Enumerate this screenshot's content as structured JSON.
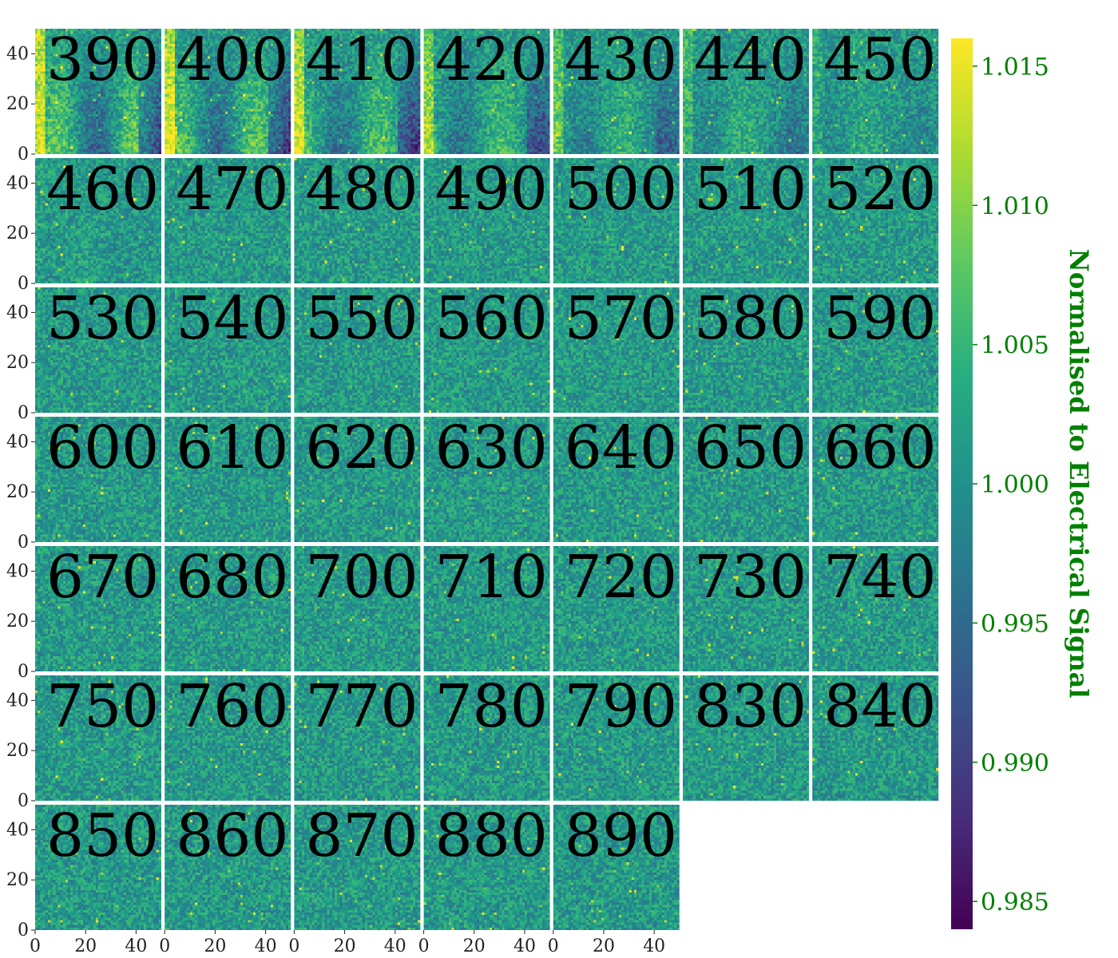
{
  "chart_data": {
    "type": "heatmap",
    "layout": {
      "rows": 7,
      "cols": 7
    },
    "panels": [
      {
        "label": "390"
      },
      {
        "label": "400"
      },
      {
        "label": "410"
      },
      {
        "label": "420"
      },
      {
        "label": "430"
      },
      {
        "label": "440"
      },
      {
        "label": "450"
      },
      {
        "label": "460"
      },
      {
        "label": "470"
      },
      {
        "label": "480"
      },
      {
        "label": "490"
      },
      {
        "label": "500"
      },
      {
        "label": "510"
      },
      {
        "label": "520"
      },
      {
        "label": "530"
      },
      {
        "label": "540"
      },
      {
        "label": "550"
      },
      {
        "label": "560"
      },
      {
        "label": "570"
      },
      {
        "label": "580"
      },
      {
        "label": "590"
      },
      {
        "label": "600"
      },
      {
        "label": "610"
      },
      {
        "label": "620"
      },
      {
        "label": "630"
      },
      {
        "label": "640"
      },
      {
        "label": "650"
      },
      {
        "label": "660"
      },
      {
        "label": "670"
      },
      {
        "label": "680"
      },
      {
        "label": "700"
      },
      {
        "label": "710"
      },
      {
        "label": "720"
      },
      {
        "label": "730"
      },
      {
        "label": "740"
      },
      {
        "label": "750"
      },
      {
        "label": "760"
      },
      {
        "label": "770"
      },
      {
        "label": "780"
      },
      {
        "label": "790"
      },
      {
        "label": "830"
      },
      {
        "label": "840"
      },
      {
        "label": "850"
      },
      {
        "label": "860"
      },
      {
        "label": "870"
      },
      {
        "label": "880"
      },
      {
        "label": "890"
      }
    ],
    "pixel_grid": [
      50,
      50
    ],
    "x_range": [
      0,
      50
    ],
    "y_range": [
      0,
      50
    ],
    "x_ticks": [
      "0",
      "20",
      "40"
    ],
    "y_ticks": [
      "0",
      "20",
      "40"
    ],
    "colorbar": {
      "label": "Normalised to Electrical Signal",
      "range": [
        0.984,
        1.016
      ],
      "ticks": [
        "0.985",
        "0.990",
        "0.995",
        "1.000",
        "1.005",
        "1.010",
        "1.015"
      ],
      "colormap": "viridis",
      "text_color": "#008000"
    }
  }
}
